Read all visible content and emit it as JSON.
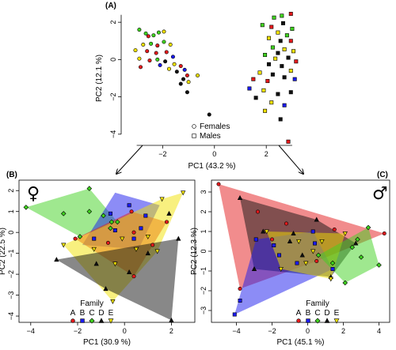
{
  "colors": {
    "A": "#e41a1c",
    "B": "#1a1aee",
    "C": "#3fd21f",
    "D": "#111111",
    "E": "#f2e200"
  },
  "chart_data": [
    {
      "id": "A",
      "type": "scatter",
      "panel_label": "(A)",
      "xlabel": "PC1 (43.2 %)",
      "ylabel": "PC2 (12.1 %)",
      "xlim": [
        -3.6,
        3.4
      ],
      "ylim": [
        -4.6,
        2.6
      ],
      "xticks": [
        -2,
        0,
        2
      ],
      "yticks": [
        -4,
        -2,
        0,
        2
      ],
      "legend": {
        "placement": "bottom-right",
        "entries": [
          {
            "symbol": "circle",
            "label": "Females"
          },
          {
            "symbol": "square",
            "label": "Males"
          }
        ]
      },
      "points": [
        [
          -2.9,
          1.6,
          "C",
          "o"
        ],
        [
          -2.65,
          1.4,
          "C",
          "o"
        ],
        [
          -2.35,
          1.3,
          "C",
          "o"
        ],
        [
          -2.15,
          1.45,
          "C",
          "o"
        ],
        [
          -1.95,
          1.5,
          "E",
          "o"
        ],
        [
          -2.55,
          1.25,
          "A",
          "o"
        ],
        [
          -2.75,
          0.8,
          "E",
          "o"
        ],
        [
          -2.45,
          0.85,
          "C",
          "o"
        ],
        [
          -2.2,
          0.75,
          "A",
          "o"
        ],
        [
          -1.95,
          0.95,
          "C",
          "o"
        ],
        [
          -1.7,
          0.8,
          "E",
          "o"
        ],
        [
          -3.05,
          0.5,
          "E",
          "o"
        ],
        [
          -2.6,
          0.45,
          "A",
          "o"
        ],
        [
          -2.25,
          0.35,
          "A",
          "o"
        ],
        [
          -1.85,
          0.4,
          "A",
          "o"
        ],
        [
          -1.6,
          0.15,
          "B",
          "o"
        ],
        [
          -2.9,
          0.05,
          "E",
          "o"
        ],
        [
          -2.5,
          -0.05,
          "A",
          "o"
        ],
        [
          -2.2,
          0.0,
          "C",
          "o"
        ],
        [
          -1.9,
          -0.1,
          "D",
          "o"
        ],
        [
          -1.55,
          -0.25,
          "E",
          "o"
        ],
        [
          -2.1,
          -0.3,
          "B",
          "o"
        ],
        [
          -1.75,
          -0.5,
          "E",
          "o"
        ],
        [
          -1.45,
          -0.65,
          "D",
          "o"
        ],
        [
          -2.85,
          -0.4,
          "A",
          "o"
        ],
        [
          -1.3,
          -0.35,
          "A",
          "o"
        ],
        [
          -1.15,
          -0.55,
          "B",
          "o"
        ],
        [
          -1.05,
          -0.85,
          "A",
          "o"
        ],
        [
          -1.2,
          -1.05,
          "D",
          "o"
        ],
        [
          -1.0,
          -1.2,
          "E",
          "o"
        ],
        [
          -1.3,
          -1.3,
          "D",
          "o"
        ],
        [
          -1.05,
          -1.75,
          "D",
          "o"
        ],
        [
          -0.65,
          -0.85,
          "E",
          "o"
        ],
        [
          -0.2,
          -2.95,
          "D",
          "o"
        ],
        [
          1.85,
          1.85,
          "C",
          "s"
        ],
        [
          2.3,
          2.25,
          "C",
          "s"
        ],
        [
          2.6,
          2.35,
          "C",
          "s"
        ],
        [
          2.95,
          2.45,
          "A",
          "s"
        ],
        [
          2.2,
          1.75,
          "A",
          "s"
        ],
        [
          2.65,
          1.95,
          "D",
          "s"
        ],
        [
          3.0,
          1.65,
          "C",
          "s"
        ],
        [
          2.45,
          1.45,
          "E",
          "s"
        ],
        [
          2.8,
          1.3,
          "C",
          "s"
        ],
        [
          2.1,
          1.15,
          "E",
          "s"
        ],
        [
          2.55,
          1.0,
          "D",
          "s"
        ],
        [
          2.95,
          1.0,
          "A",
          "s"
        ],
        [
          2.25,
          0.65,
          "C",
          "s"
        ],
        [
          2.7,
          0.55,
          "E",
          "s"
        ],
        [
          3.05,
          0.45,
          "E",
          "s"
        ],
        [
          2.45,
          0.35,
          "D",
          "s"
        ],
        [
          1.95,
          0.25,
          "C",
          "s"
        ],
        [
          2.35,
          0.05,
          "E",
          "s"
        ],
        [
          2.85,
          0.1,
          "D",
          "s"
        ],
        [
          3.15,
          -0.1,
          "A",
          "s"
        ],
        [
          2.1,
          -0.25,
          "D",
          "s"
        ],
        [
          2.6,
          -0.35,
          "D",
          "s"
        ],
        [
          2.95,
          -0.6,
          "E",
          "s"
        ],
        [
          1.75,
          -0.7,
          "E",
          "s"
        ],
        [
          2.25,
          -0.8,
          "D",
          "s"
        ],
        [
          2.7,
          -0.95,
          "D",
          "s"
        ],
        [
          1.5,
          -1.05,
          "A",
          "s"
        ],
        [
          2.05,
          -1.15,
          "A",
          "s"
        ],
        [
          3.1,
          -1.05,
          "B",
          "s"
        ],
        [
          1.35,
          -1.55,
          "B",
          "s"
        ],
        [
          1.9,
          -1.65,
          "E",
          "s"
        ],
        [
          2.45,
          -1.85,
          "D",
          "s"
        ],
        [
          2.95,
          -1.75,
          "D",
          "s"
        ],
        [
          1.6,
          -2.05,
          "D",
          "s"
        ],
        [
          2.2,
          -2.3,
          "E",
          "s"
        ],
        [
          2.7,
          -2.45,
          "B",
          "s"
        ],
        [
          1.95,
          -2.75,
          "E",
          "s"
        ],
        [
          2.55,
          -3.2,
          "D",
          "s"
        ],
        [
          2.85,
          -4.4,
          "A",
          "s"
        ]
      ]
    },
    {
      "id": "B",
      "type": "scatter",
      "panel_label": "(B)",
      "xlabel": "PC1 (30.9 %)",
      "ylabel": "PC2 (22.5 %)",
      "xlim": [
        -4.5,
        3.0
      ],
      "ylim": [
        -4.3,
        2.5
      ],
      "xticks": [
        -4,
        -2,
        0,
        2
      ],
      "yticks": [
        -4,
        -3,
        -2,
        -1,
        0,
        1,
        2
      ],
      "sex_symbol": "♀",
      "legend": {
        "title": "Family",
        "labels": [
          "A",
          "B",
          "C",
          "D",
          "E"
        ],
        "placement": "bottom-center"
      },
      "families": {
        "C": {
          "hull": [
            [
              -4.2,
              1.2
            ],
            [
              -1.5,
              2.1
            ],
            [
              -0.3,
              0.5
            ],
            [
              -1.9,
              -0.2
            ]
          ],
          "points": [
            [
              -4.2,
              1.2
            ],
            [
              -1.5,
              2.1
            ],
            [
              -0.3,
              0.5
            ],
            [
              -1.9,
              -0.2
            ],
            [
              -2.6,
              0.9
            ],
            [
              -1.5,
              1.0
            ],
            [
              -0.9,
              0.8
            ],
            [
              -0.6,
              0.2
            ],
            [
              -0.55,
              0.5
            ]
          ]
        },
        "B": {
          "hull": [
            [
              -1.8,
              -0.6
            ],
            [
              -0.4,
              1.9
            ],
            [
              1.5,
              1.3
            ],
            [
              0.6,
              -0.8
            ]
          ],
          "points": [
            [
              -1.3,
              -0.3
            ],
            [
              -0.6,
              0.9
            ],
            [
              0.2,
              1.3
            ],
            [
              0.9,
              0.8
            ],
            [
              0.4,
              -0.3
            ],
            [
              -0.4,
              0.1
            ],
            [
              0.7,
              0.2
            ]
          ]
        },
        "A": {
          "hull": [
            [
              -2.1,
              -0.3
            ],
            [
              0.3,
              1.0
            ],
            [
              1.8,
              0.5
            ],
            [
              0.4,
              -2.1
            ]
          ],
          "points": [
            [
              -2.1,
              -0.3
            ],
            [
              0.3,
              1.0
            ],
            [
              1.8,
              0.5
            ],
            [
              0.4,
              -2.1
            ],
            [
              -0.7,
              -0.5
            ],
            [
              0.4,
              0.0
            ],
            [
              1.2,
              -0.6
            ]
          ]
        },
        "E": {
          "hull": [
            [
              -2.6,
              -0.6
            ],
            [
              1.6,
              1.6
            ],
            [
              2.5,
              1.9
            ],
            [
              1.4,
              -0.9
            ],
            [
              -0.5,
              -3.3
            ]
          ],
          "points": [
            [
              -2.6,
              -0.6
            ],
            [
              1.6,
              1.6
            ],
            [
              2.5,
              1.9
            ],
            [
              1.4,
              -0.9
            ],
            [
              -0.5,
              -3.3
            ],
            [
              -1.3,
              -0.8
            ],
            [
              0.5,
              -0.8
            ],
            [
              -0.4,
              -1.5
            ],
            [
              -0.1,
              -0.3
            ],
            [
              1.0,
              -0.2
            ]
          ]
        },
        "D": {
          "hull": [
            [
              -2.9,
              -1.3
            ],
            [
              2.3,
              -0.3
            ],
            [
              2.0,
              -4.2
            ],
            [
              -0.8,
              -2.7
            ]
          ],
          "points": [
            [
              -2.9,
              -1.3
            ],
            [
              2.3,
              -0.3
            ],
            [
              2.0,
              -4.2
            ],
            [
              -0.8,
              -2.7
            ],
            [
              1.9,
              0.9
            ],
            [
              -1.2,
              -1.5
            ],
            [
              0.2,
              -1.9
            ],
            [
              1.0,
              -1.0
            ]
          ]
        }
      }
    },
    {
      "id": "C",
      "type": "scatter",
      "panel_label": "(C)",
      "xlabel": "PC1 (45.1 %)",
      "ylabel": "PC2 (12.3 %)",
      "xlim": [
        -5.4,
        4.6
      ],
      "ylim": [
        -3.6,
        3.6
      ],
      "xticks": [
        -4,
        -2,
        0,
        2,
        4
      ],
      "yticks": [
        -3,
        -2,
        -1,
        0,
        1,
        2,
        3
      ],
      "sex_symbol": "♂",
      "legend": {
        "title": "Family",
        "labels": [
          "A",
          "B",
          "C",
          "D",
          "E"
        ],
        "placement": "bottom-center"
      },
      "families": {
        "A": {
          "hull": [
            [
              -5.0,
              3.4
            ],
            [
              4.3,
              0.9
            ],
            [
              0.5,
              -0.5
            ],
            [
              -3.8,
              -1.9
            ]
          ],
          "points": [
            [
              -5.0,
              3.4
            ],
            [
              4.3,
              0.9
            ],
            [
              0.5,
              -0.5
            ],
            [
              -3.8,
              -1.9
            ],
            [
              -2.8,
              2.0
            ],
            [
              -1.2,
              1.4
            ],
            [
              1.5,
              1.1
            ],
            [
              -2.0,
              0.6
            ]
          ]
        },
        "D": {
          "hull": [
            [
              -3.8,
              2.7
            ],
            [
              -3.0,
              -0.9
            ],
            [
              1.3,
              -1.3
            ],
            [
              2.7,
              0.4
            ],
            [
              0.5,
              1.6
            ]
          ],
          "points": [
            [
              -3.8,
              2.7
            ],
            [
              -3.0,
              -0.9
            ],
            [
              1.3,
              -1.3
            ],
            [
              2.7,
              0.4
            ],
            [
              0.5,
              1.6
            ],
            [
              -2.5,
              1.0
            ],
            [
              -0.8,
              0.9
            ],
            [
              -0.3,
              -0.2
            ],
            [
              -1.0,
              0.5
            ]
          ]
        },
        "B": {
          "hull": [
            [
              -4.1,
              -3.2
            ],
            [
              -2.9,
              0.6
            ],
            [
              0.3,
              1.0
            ],
            [
              1.4,
              -0.9
            ]
          ],
          "points": [
            [
              -4.1,
              -3.2
            ],
            [
              -2.9,
              0.6
            ],
            [
              0.3,
              1.0
            ],
            [
              1.4,
              -0.9
            ],
            [
              -3.8,
              -2.5
            ],
            [
              -1.6,
              -0.2
            ],
            [
              -0.6,
              -0.6
            ],
            [
              0.4,
              0.4
            ],
            [
              -1.9,
              0.3
            ]
          ]
        },
        "E": {
          "hull": [
            [
              -2.3,
              1.0
            ],
            [
              2.1,
              0.9
            ],
            [
              1.3,
              -1.4
            ],
            [
              -1.5,
              -0.9
            ]
          ],
          "points": [
            [
              -2.3,
              1.0
            ],
            [
              2.1,
              0.9
            ],
            [
              1.3,
              -1.4
            ],
            [
              -1.5,
              -0.9
            ],
            [
              0.3,
              0.0
            ],
            [
              -0.5,
              0.5
            ],
            [
              0.8,
              0.5
            ],
            [
              -0.1,
              -0.6
            ]
          ]
        },
        "C": {
          "hull": [
            [
              0.6,
              -0.2
            ],
            [
              3.4,
              1.2
            ],
            [
              4.0,
              -0.7
            ],
            [
              2.1,
              -1.6
            ]
          ],
          "points": [
            [
              0.6,
              -0.2
            ],
            [
              3.4,
              1.2
            ],
            [
              4.0,
              -0.7
            ],
            [
              2.1,
              -1.6
            ],
            [
              2.5,
              0.2
            ],
            [
              1.4,
              -0.6
            ],
            [
              3.0,
              -0.3
            ],
            [
              2.8,
              0.6
            ]
          ]
        }
      }
    }
  ]
}
